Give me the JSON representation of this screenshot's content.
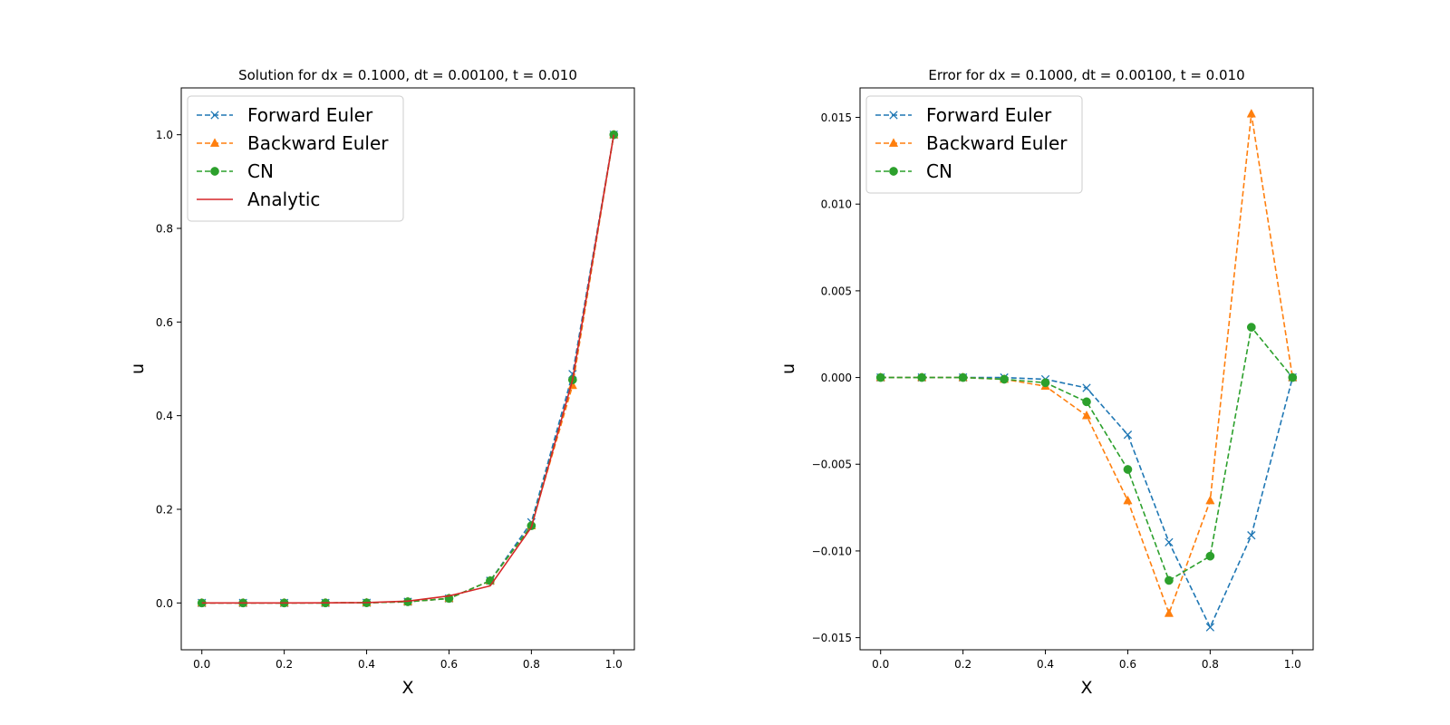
{
  "chart_data": [
    {
      "type": "line",
      "title": "Solution for dx = 0.1000, dt = 0.00100, t = 0.010",
      "xlabel": "X",
      "ylabel": "u",
      "xlim": [
        -0.05,
        1.05
      ],
      "ylim": [
        -0.1,
        1.1
      ],
      "xticks": [
        0.0,
        0.2,
        0.4,
        0.6,
        0.8,
        1.0
      ],
      "xtick_labels": [
        "0.0",
        "0.2",
        "0.4",
        "0.6",
        "0.8",
        "1.0"
      ],
      "yticks": [
        0.0,
        0.2,
        0.4,
        0.6,
        0.8,
        1.0
      ],
      "ytick_labels": [
        "0.0",
        "0.2",
        "0.4",
        "0.6",
        "0.8",
        "1.0"
      ],
      "grid": false,
      "legend": "upper-left",
      "x": [
        0.0,
        0.1,
        0.2,
        0.3,
        0.4,
        0.5,
        0.6,
        0.7,
        0.8,
        0.9,
        1.0
      ],
      "series": [
        {
          "name": "Forward Euler",
          "color": "#1f77b4",
          "marker": "x",
          "dashed": true,
          "values": [
            0.0,
            0.0,
            0.0,
            0.0001,
            0.0004,
            0.0026,
            0.0096,
            0.0474,
            0.1723,
            0.4889,
            1.0
          ]
        },
        {
          "name": "Backward Euler",
          "color": "#ff7f0e",
          "marker": "triangle",
          "dashed": true,
          "values": [
            0.0,
            0.0,
            0.0,
            0.0001,
            0.0004,
            0.0026,
            0.0096,
            0.0474,
            0.165,
            0.4645,
            1.0
          ]
        },
        {
          "name": "CN",
          "color": "#2ca02c",
          "marker": "circle",
          "dashed": true,
          "values": [
            0.0,
            0.0,
            0.0,
            0.0001,
            0.0004,
            0.0026,
            0.0096,
            0.0474,
            0.165,
            0.4766,
            1.0
          ]
        },
        {
          "name": "Analytic",
          "color": "#d62728",
          "marker": "none",
          "dashed": false,
          "values": [
            0.0,
            0.0,
            0.0,
            0.0002,
            0.0007,
            0.004,
            0.015,
            0.0365,
            0.1617,
            0.4766,
            1.0
          ]
        }
      ]
    },
    {
      "type": "line",
      "title": "Error for dx = 0.1000, dt = 0.00100, t = 0.010",
      "xlabel": "X",
      "ylabel": "u",
      "xlim": [
        -0.05,
        1.05
      ],
      "ylim": [
        -0.0157,
        0.0167
      ],
      "xticks": [
        0.0,
        0.2,
        0.4,
        0.6,
        0.8,
        1.0
      ],
      "xtick_labels": [
        "0.0",
        "0.2",
        "0.4",
        "0.6",
        "0.8",
        "1.0"
      ],
      "yticks": [
        -0.015,
        -0.01,
        -0.005,
        0.0,
        0.005,
        0.01,
        0.015
      ],
      "ytick_labels": [
        "−0.015",
        "−0.010",
        "−0.005",
        "0.000",
        "0.005",
        "0.010",
        "0.015"
      ],
      "grid": false,
      "legend": "upper-left",
      "x": [
        0.0,
        0.1,
        0.2,
        0.3,
        0.4,
        0.5,
        0.6,
        0.7,
        0.8,
        0.9,
        1.0
      ],
      "series": [
        {
          "name": "Forward Euler",
          "color": "#1f77b4",
          "marker": "x",
          "dashed": true,
          "values": [
            0.0,
            0.0,
            0.0,
            0.0,
            -0.0001,
            -0.0006,
            -0.0033,
            -0.0095,
            -0.0144,
            -0.0091,
            0.0
          ]
        },
        {
          "name": "Backward Euler",
          "color": "#ff7f0e",
          "marker": "triangle",
          "dashed": true,
          "values": [
            0.0,
            0.0,
            0.0,
            -0.0001,
            -0.0005,
            -0.0022,
            -0.0071,
            -0.0136,
            -0.0071,
            0.0152,
            0.0
          ]
        },
        {
          "name": "CN",
          "color": "#2ca02c",
          "marker": "circle",
          "dashed": true,
          "values": [
            0.0,
            0.0,
            0.0,
            -0.0001,
            -0.0003,
            -0.0014,
            -0.0053,
            -0.0117,
            -0.0103,
            0.0029,
            0.0
          ]
        }
      ]
    }
  ]
}
